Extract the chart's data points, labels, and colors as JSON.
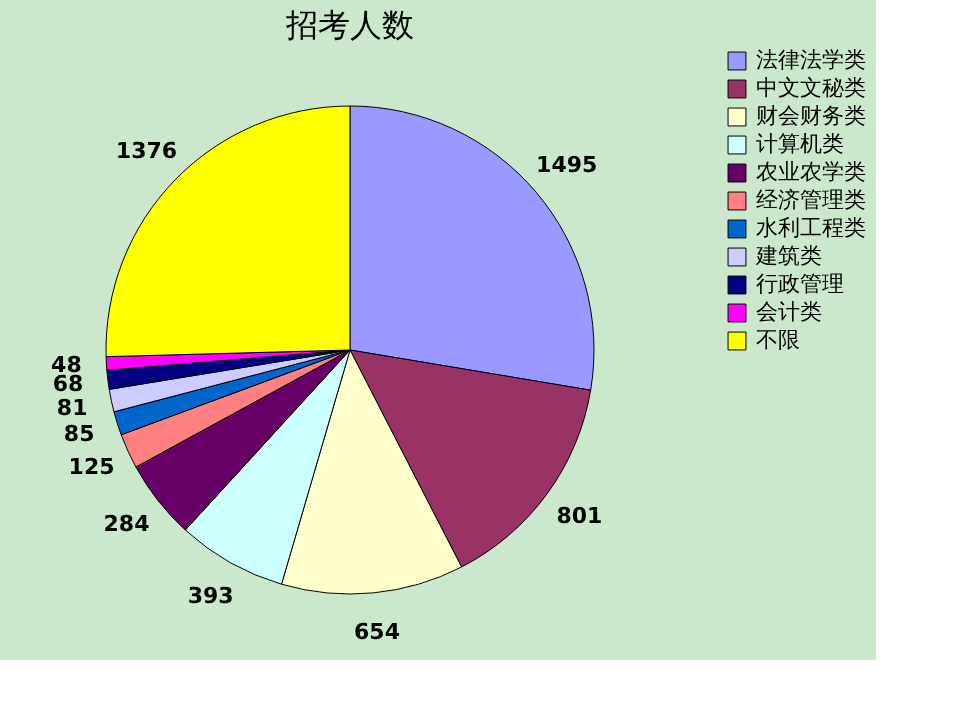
{
  "chart_data": {
    "type": "pie",
    "title": "招考人数",
    "categories": [
      "法律法学类",
      "中文文秘类",
      "财会财务类",
      "计算机类",
      "农业农学类",
      "经济管理类",
      "水利工程类",
      "建筑类",
      "行政管理",
      "会计类",
      "不限"
    ],
    "values": [
      1495,
      801,
      654,
      393,
      284,
      125,
      85,
      81,
      68,
      48,
      1376
    ],
    "colors": [
      "#9999ff",
      "#993366",
      "#ffffcc",
      "#ccffff",
      "#660066",
      "#ff8080",
      "#0066cc",
      "#ccccff",
      "#000080",
      "#ff00ff",
      "#ffff00"
    ],
    "data_labels": true,
    "legend": "right"
  }
}
